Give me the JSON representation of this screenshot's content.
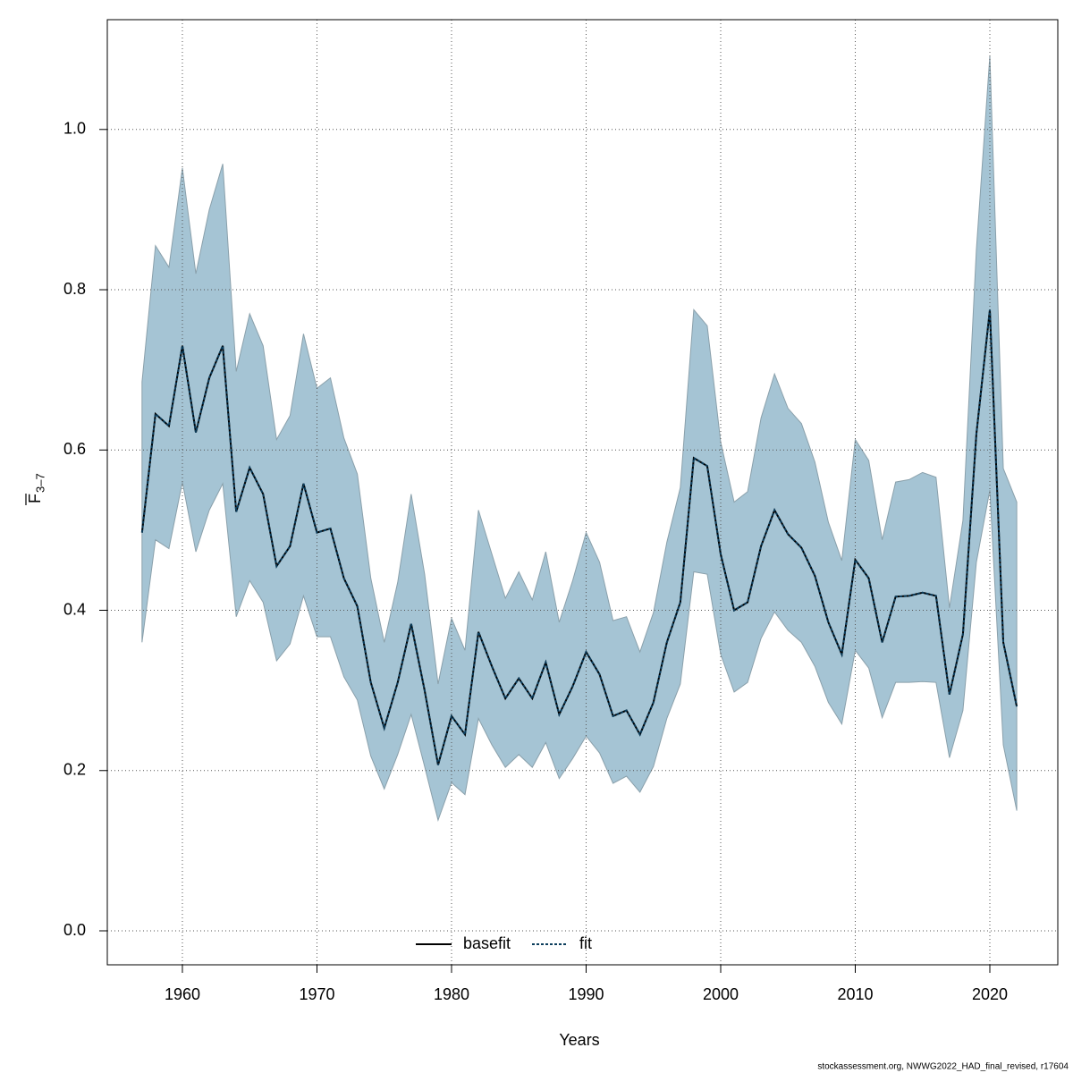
{
  "chart_data": {
    "type": "line",
    "xlabel": "Years",
    "ylabel": {
      "main": "F",
      "sub": "3–7"
    },
    "footnote": "stockassessment.org, NWWG2022_HAD_final_revised, r17604",
    "x": [
      1957,
      1958,
      1959,
      1960,
      1961,
      1962,
      1963,
      1964,
      1965,
      1966,
      1967,
      1968,
      1969,
      1970,
      1971,
      1972,
      1973,
      1974,
      1975,
      1976,
      1977,
      1978,
      1979,
      1980,
      1981,
      1982,
      1983,
      1984,
      1985,
      1986,
      1987,
      1988,
      1989,
      1990,
      1991,
      1992,
      1993,
      1994,
      1995,
      1996,
      1997,
      1998,
      1999,
      2000,
      2001,
      2002,
      2003,
      2004,
      2005,
      2006,
      2007,
      2008,
      2009,
      2010,
      2011,
      2012,
      2013,
      2014,
      2015,
      2016,
      2017,
      2018,
      2019,
      2020,
      2021,
      2022
    ],
    "series": [
      {
        "name": "basefit",
        "color": "#000000",
        "dash": "solid",
        "values": [
          0.497,
          0.645,
          0.63,
          0.73,
          0.622,
          0.69,
          0.73,
          0.523,
          0.578,
          0.545,
          0.455,
          0.48,
          0.558,
          0.497,
          0.502,
          0.44,
          0.405,
          0.31,
          0.253,
          0.31,
          0.383,
          0.3,
          0.207,
          0.268,
          0.245,
          0.373,
          0.33,
          0.29,
          0.315,
          0.29,
          0.335,
          0.27,
          0.305,
          0.348,
          0.32,
          0.268,
          0.275,
          0.245,
          0.285,
          0.36,
          0.41,
          0.59,
          0.58,
          0.47,
          0.4,
          0.41,
          0.48,
          0.525,
          0.495,
          0.478,
          0.443,
          0.385,
          0.345,
          0.463,
          0.44,
          0.36,
          0.417,
          0.418,
          0.422,
          0.418,
          0.295,
          0.37,
          0.62,
          0.775,
          0.36,
          0.28
        ]
      },
      {
        "name": "fit",
        "color": "#0b3d5c",
        "dash": "dotted",
        "values": [
          0.497,
          0.645,
          0.63,
          0.73,
          0.622,
          0.69,
          0.73,
          0.523,
          0.578,
          0.545,
          0.455,
          0.48,
          0.558,
          0.497,
          0.502,
          0.44,
          0.405,
          0.31,
          0.253,
          0.31,
          0.383,
          0.3,
          0.207,
          0.268,
          0.245,
          0.373,
          0.33,
          0.29,
          0.315,
          0.29,
          0.335,
          0.27,
          0.305,
          0.348,
          0.32,
          0.268,
          0.275,
          0.245,
          0.285,
          0.36,
          0.41,
          0.59,
          0.58,
          0.47,
          0.4,
          0.41,
          0.48,
          0.525,
          0.495,
          0.478,
          0.443,
          0.385,
          0.345,
          0.463,
          0.44,
          0.36,
          0.417,
          0.418,
          0.422,
          0.418,
          0.295,
          0.37,
          0.62,
          0.775,
          0.36,
          0.28
        ]
      }
    ],
    "band": {
      "color": "#a5c4d4",
      "upper": [
        0.685,
        0.855,
        0.828,
        0.952,
        0.82,
        0.9,
        0.957,
        0.698,
        0.77,
        0.73,
        0.613,
        0.643,
        0.745,
        0.677,
        0.69,
        0.615,
        0.57,
        0.44,
        0.36,
        0.435,
        0.545,
        0.445,
        0.308,
        0.39,
        0.35,
        0.525,
        0.47,
        0.415,
        0.448,
        0.413,
        0.473,
        0.385,
        0.437,
        0.497,
        0.46,
        0.387,
        0.392,
        0.348,
        0.397,
        0.485,
        0.553,
        0.775,
        0.755,
        0.61,
        0.535,
        0.548,
        0.64,
        0.695,
        0.652,
        0.633,
        0.585,
        0.51,
        0.462,
        0.613,
        0.587,
        0.488,
        0.56,
        0.563,
        0.572,
        0.566,
        0.403,
        0.512,
        0.85,
        1.092,
        0.577,
        0.535
      ],
      "lower": [
        0.36,
        0.488,
        0.477,
        0.56,
        0.473,
        0.525,
        0.558,
        0.392,
        0.437,
        0.41,
        0.337,
        0.358,
        0.418,
        0.367,
        0.367,
        0.317,
        0.288,
        0.218,
        0.177,
        0.22,
        0.27,
        0.205,
        0.138,
        0.185,
        0.17,
        0.265,
        0.232,
        0.204,
        0.22,
        0.204,
        0.235,
        0.19,
        0.215,
        0.243,
        0.222,
        0.184,
        0.193,
        0.173,
        0.205,
        0.265,
        0.308,
        0.448,
        0.445,
        0.345,
        0.298,
        0.31,
        0.365,
        0.398,
        0.375,
        0.36,
        0.33,
        0.285,
        0.258,
        0.35,
        0.328,
        0.266,
        0.31,
        0.31,
        0.311,
        0.31,
        0.216,
        0.275,
        0.46,
        0.55,
        0.232,
        0.15
      ]
    },
    "xlim": [
      1954.42,
      2025.05
    ],
    "ylim": [
      -0.0424,
      1.137
    ],
    "xticks": [
      1960,
      1970,
      1980,
      1990,
      2000,
      2010,
      2020
    ],
    "yticks": [
      {
        "value": 0,
        "label": "0.0"
      },
      {
        "value": 0.2,
        "label": "0.2"
      },
      {
        "value": 0.4,
        "label": "0.4"
      },
      {
        "value": 0.6,
        "label": "0.6"
      },
      {
        "value": 0.8,
        "label": "0.8"
      },
      {
        "value": 1,
        "label": "1.0"
      }
    ],
    "grid": true,
    "legend": "bottom"
  }
}
